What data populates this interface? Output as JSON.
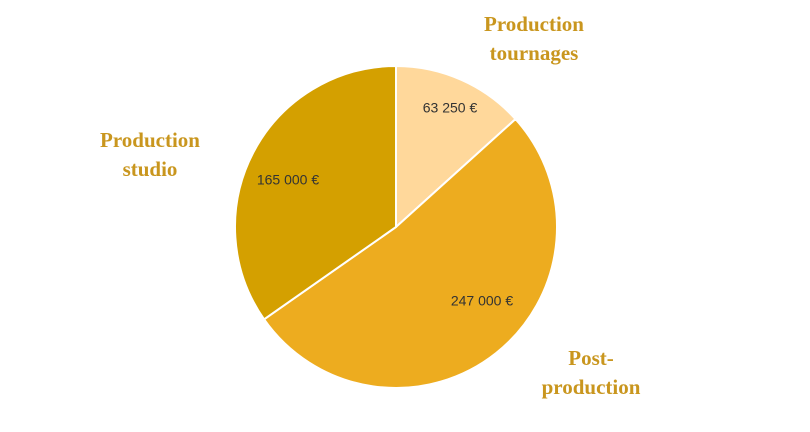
{
  "chart_data": {
    "type": "pie",
    "categories": [
      "Production tournages",
      "Post-production",
      "Production studio"
    ],
    "values": [
      63250,
      247000,
      165000
    ],
    "value_labels": [
      "63 250 €",
      "247 000 €",
      "165 000 €"
    ],
    "colors": [
      "#FFD89B",
      "#EDAC1F",
      "#D4A000"
    ]
  }
}
